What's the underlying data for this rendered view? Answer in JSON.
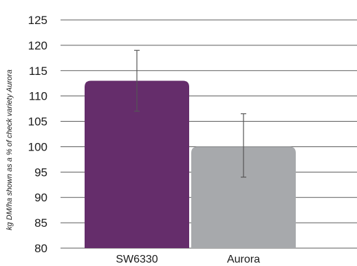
{
  "chart_data": {
    "type": "bar",
    "title": "",
    "xlabel": "",
    "ylabel": "kg DM/ha shown as a % of check variety Aurora",
    "categories": [
      "SW6330",
      "Aurora"
    ],
    "values": [
      113,
      100
    ],
    "error_low": [
      107,
      94
    ],
    "error_high": [
      119,
      106.5
    ],
    "ylim": [
      80,
      125
    ],
    "yticks": [
      125,
      120,
      115,
      110,
      105,
      100,
      95,
      90,
      85,
      80
    ],
    "grid": true,
    "legend": "none",
    "colors": [
      "#652d6b",
      "#a7a9ac"
    ],
    "grid_color": "#5a5a5a",
    "error_bar_color": "#555555"
  }
}
